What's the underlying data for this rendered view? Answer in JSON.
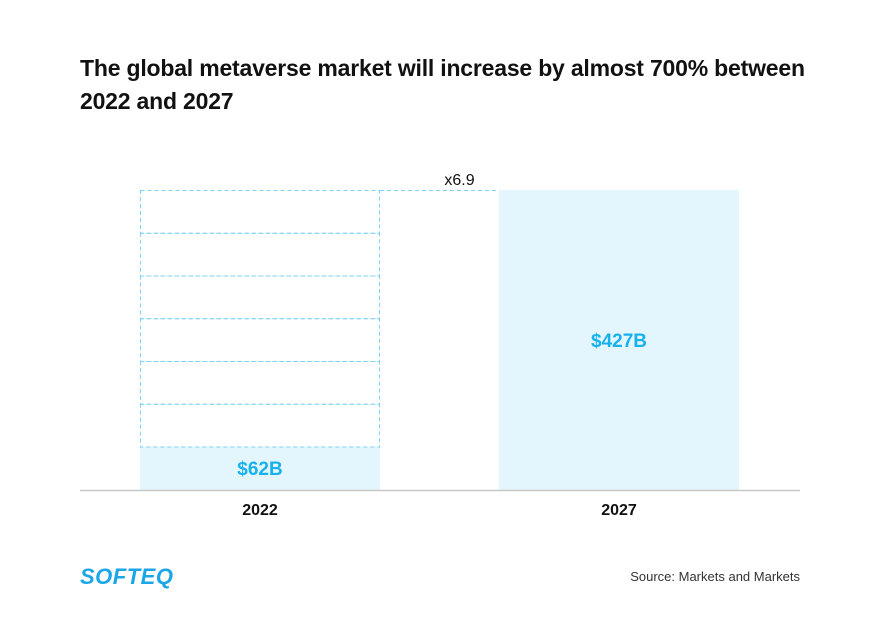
{
  "title": "The global metaverse market will increase by almost 700% between 2022 and 2027",
  "logo": "SOFTEQ",
  "source": "Source: Markets and Markets",
  "colors": {
    "bar_fill": "#e3f6fd",
    "value_label": "#17b1ee",
    "dashed": "#7fd3f2",
    "axis": "#c8c8c8",
    "text": "#111111"
  },
  "chart_data": {
    "type": "bar",
    "title": "The global metaverse market will increase by almost 700% between 2022 and 2027",
    "categories": [
      "2022",
      "2027"
    ],
    "values": [
      62,
      427
    ],
    "value_labels": [
      "$62B",
      "$427B"
    ],
    "units": "USD billions",
    "ylim": [
      0,
      427
    ],
    "grid": false,
    "annotations": [
      {
        "text": "x6.9",
        "description": "growth multiplier between 2022 and 2027"
      }
    ],
    "ghost_segments": 6,
    "xlabel": "",
    "ylabel": ""
  }
}
